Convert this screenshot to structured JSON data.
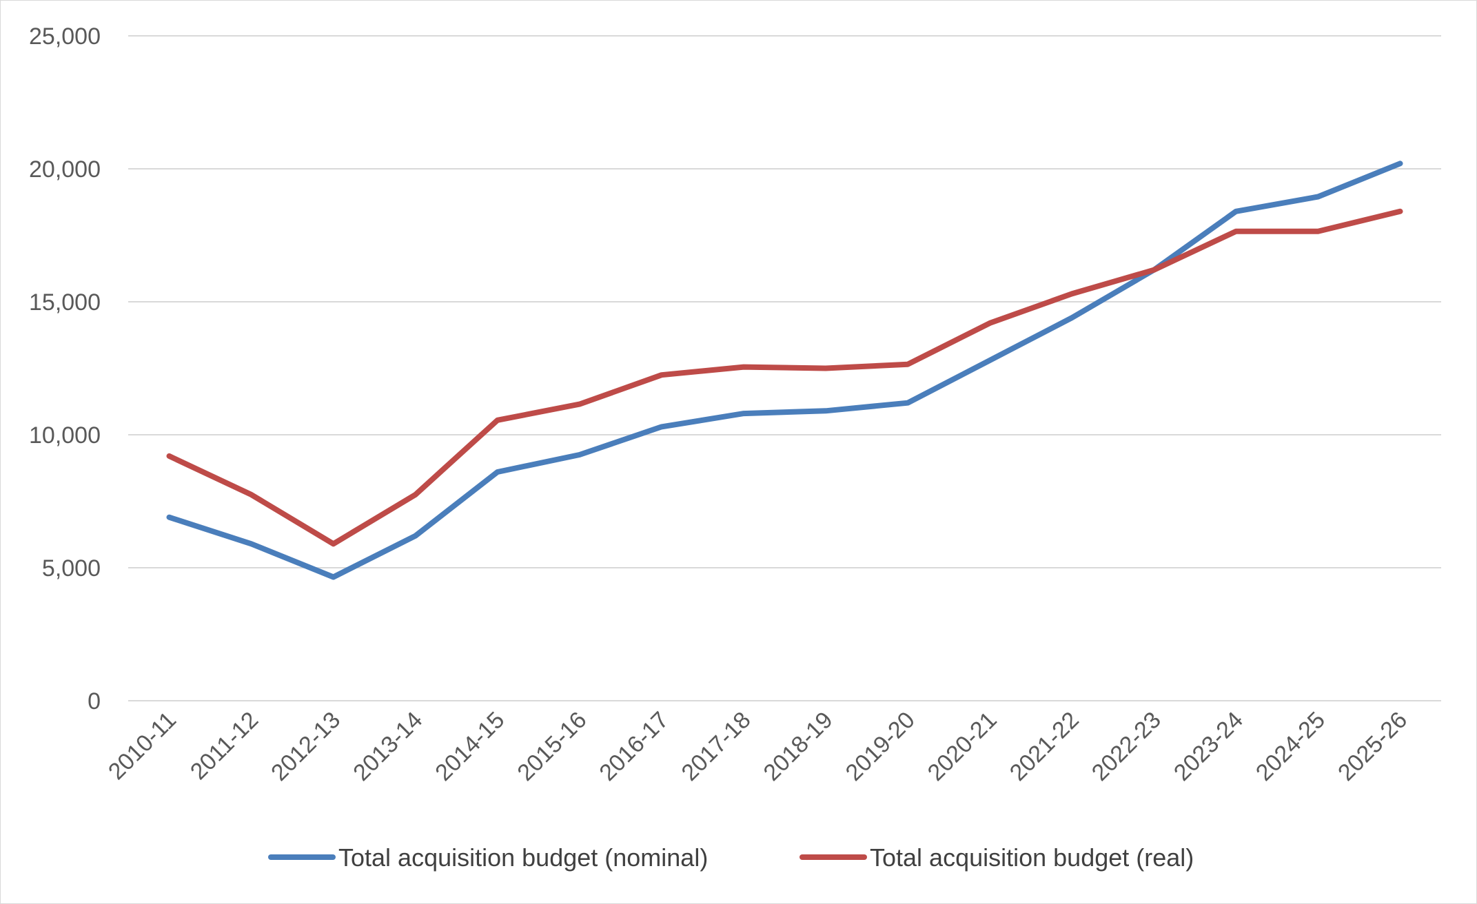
{
  "chart_data": {
    "type": "line",
    "title": "",
    "xlabel": "",
    "ylabel": "",
    "categories": [
      "2010-11",
      "2011-12",
      "2012-13",
      "2013-14",
      "2014-15",
      "2015-16",
      "2016-17",
      "2017-18",
      "2018-19",
      "2019-20",
      "2020-21",
      "2021-22",
      "2022-23",
      "2023-24",
      "2024-25",
      "2025-26"
    ],
    "ylim": [
      0,
      25000
    ],
    "yticks": [
      0,
      5000,
      10000,
      15000,
      20000,
      25000
    ],
    "ytick_labels": [
      "0",
      "5,000",
      "10,000",
      "15,000",
      "20,000",
      "25,000"
    ],
    "grid": "horizontal",
    "legend_position": "bottom",
    "series": [
      {
        "name": "Total acquisition budget (nominal)",
        "color": "#4a7ebb",
        "values": [
          6900,
          5900,
          4650,
          6200,
          8600,
          9250,
          10300,
          10800,
          10900,
          11200,
          12800,
          14400,
          16200,
          18400,
          18950,
          20200
        ]
      },
      {
        "name": "Total acquisition budget (real)",
        "color": "#be4b48",
        "values": [
          9200,
          7750,
          5900,
          7750,
          10550,
          11150,
          12250,
          12550,
          12500,
          12650,
          14200,
          15300,
          16200,
          17650,
          17650,
          18400
        ]
      }
    ]
  }
}
